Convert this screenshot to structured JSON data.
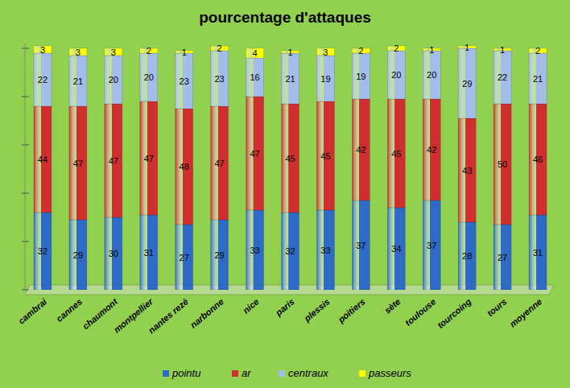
{
  "chart_data": {
    "type": "bar",
    "title": "pourcentage d'attaques",
    "categories": [
      "cambrai",
      "cannes",
      "chaumont",
      "montpellier",
      "nantes rezé",
      "narbonne",
      "nice",
      "paris",
      "plessis",
      "poitiers",
      "sète",
      "toulouse",
      "tourcoing",
      "tours",
      "moyenne"
    ],
    "series": [
      {
        "name": "pointu",
        "color": "#2E6BC6",
        "values": [
          32,
          29,
          30,
          31,
          27,
          29,
          33,
          32,
          33,
          37,
          34,
          37,
          28,
          27,
          31
        ]
      },
      {
        "name": "ar",
        "color": "#D02F2F",
        "values": [
          44,
          47,
          47,
          47,
          48,
          47,
          47,
          45,
          45,
          42,
          45,
          42,
          43,
          50,
          46
        ]
      },
      {
        "name": "centraux",
        "color": "#A4BCE8",
        "values": [
          22,
          21,
          20,
          20,
          23,
          23,
          16,
          21,
          19,
          19,
          20,
          20,
          29,
          22,
          21
        ]
      },
      {
        "name": "passeurs",
        "color": "#FFFF00",
        "values": [
          3,
          3,
          3,
          2,
          1,
          2,
          4,
          1,
          3,
          2,
          2,
          1,
          1,
          1,
          2
        ]
      }
    ],
    "ylim": [
      0,
      102
    ],
    "yticks": [
      0,
      20,
      40,
      60,
      80,
      100
    ],
    "stacked": true,
    "data_labels": true,
    "tick_labels": false,
    "grid": false,
    "legend": "bottom"
  }
}
